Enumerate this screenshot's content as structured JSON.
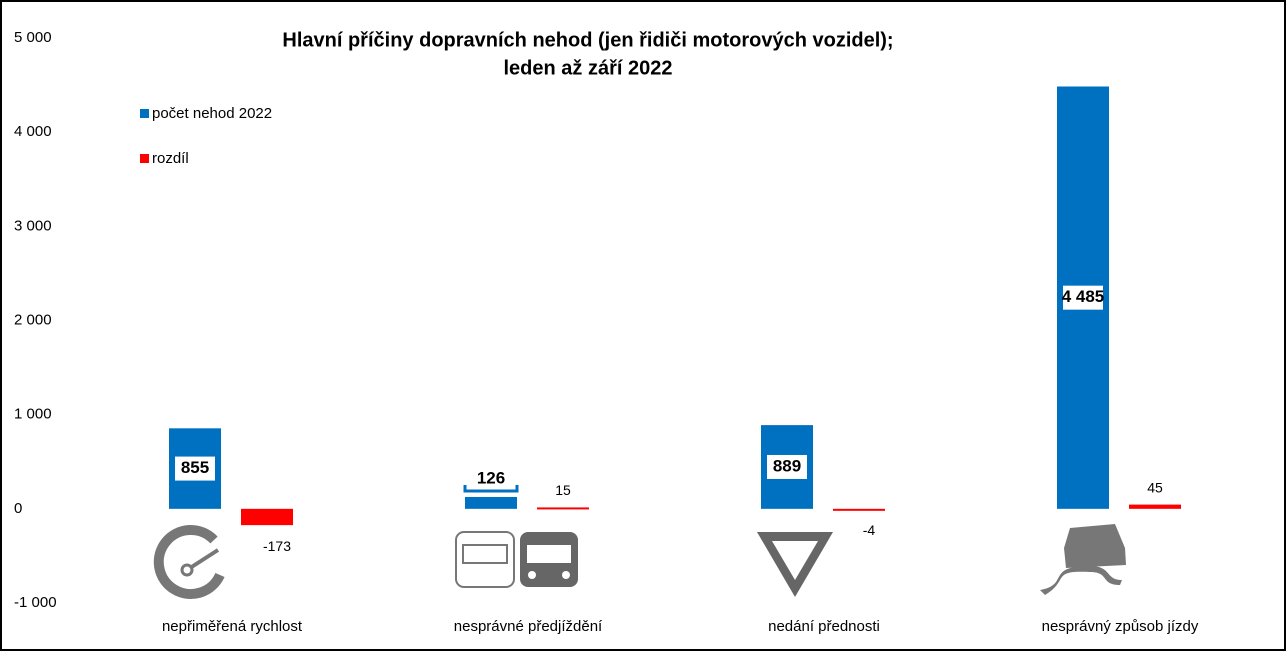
{
  "chart_data": {
    "type": "bar",
    "title": [
      "Hlavní příčiny dopravních nehod (jen řidiči motorových vozidel);",
      "leden až září 2022"
    ],
    "categories": [
      "nepřiměřená rychlost",
      "nesprávné předjíždění",
      "nedání přednosti",
      "nesprávný způsob jízdy"
    ],
    "series": [
      {
        "name": "počet nehod 2022",
        "color": "#0070c0",
        "values": [
          855,
          126,
          889,
          4485
        ],
        "value_labels": [
          "855",
          "126",
          "889",
          "4 485"
        ]
      },
      {
        "name": "rozdíl",
        "color": "#ff0000",
        "values": [
          -173,
          15,
          -4,
          45
        ]
      }
    ],
    "ylim": [
      -1000,
      5000
    ],
    "yticks": [
      {
        "value": -1000,
        "label": "-1 000"
      },
      0,
      {
        "value": 1000,
        "label": "1 000"
      },
      {
        "value": 2000,
        "label": "2 000"
      },
      {
        "value": 3000,
        "label": "3 000"
      },
      {
        "value": 4000,
        "label": "4 000"
      },
      {
        "value": 5000,
        "label": "5 000"
      }
    ],
    "grid": false,
    "legend": "upper left"
  }
}
